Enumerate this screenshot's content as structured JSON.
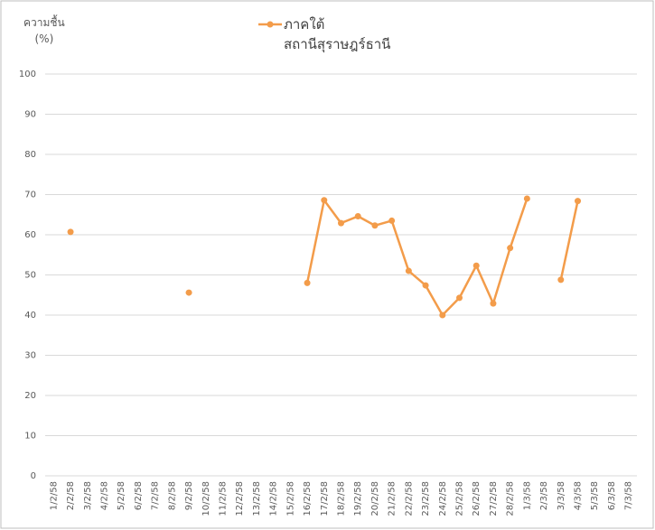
{
  "chart_data": {
    "type": "line",
    "y_axis_label": "ความชื้น\n(%)",
    "categories": [
      "1/2/58",
      "2/2/58",
      "3/2/58",
      "4/2/58",
      "5/2/58",
      "6/2/58",
      "7/2/58",
      "8/2/58",
      "9/2/58",
      "10/2/58",
      "11/2/58",
      "12/2/58",
      "13/2/58",
      "14/2/58",
      "15/2/58",
      "16/2/58",
      "17/2/58",
      "18/2/58",
      "19/2/58",
      "20/2/58",
      "21/2/58",
      "22/2/58",
      "23/2/58",
      "24/2/58",
      "25/2/58",
      "26/2/58",
      "27/2/58",
      "28/2/58",
      "1/3/58",
      "2/3/58",
      "3/3/58",
      "4/3/58",
      "5/3/58",
      "6/3/58",
      "7/3/58"
    ],
    "series": [
      {
        "name": "ภาคใต้\nสถานีสุราษฎร์ธานี",
        "color": "#f39c4a",
        "values": [
          null,
          60.7,
          null,
          null,
          null,
          null,
          null,
          null,
          45.6,
          null,
          null,
          null,
          null,
          null,
          null,
          48,
          68.6,
          62.9,
          64.6,
          62.3,
          63.5,
          51,
          47.4,
          40,
          44.3,
          52.3,
          42.9,
          56.7,
          69,
          null,
          48.8,
          68.4,
          null,
          null,
          null
        ]
      }
    ],
    "ylim": [
      0,
      100
    ],
    "yticks": [
      0,
      10,
      20,
      30,
      40,
      50,
      60,
      70,
      80,
      90,
      100
    ],
    "grid": true,
    "legend": "top"
  }
}
